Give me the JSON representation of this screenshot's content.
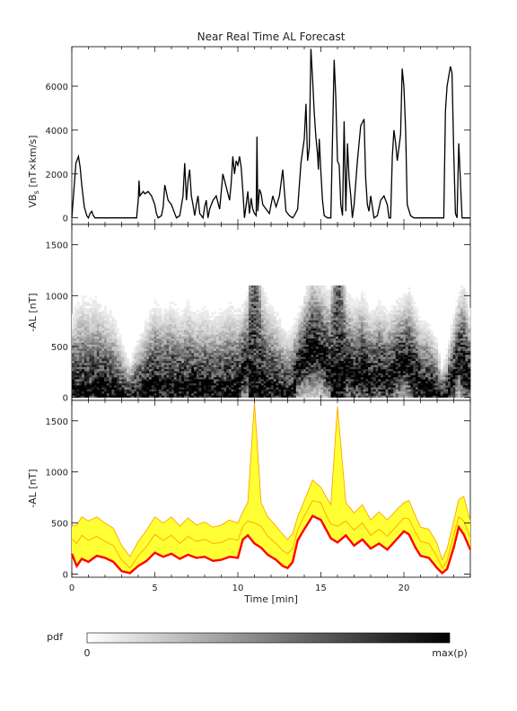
{
  "title": "Near Real Time AL Forecast",
  "colors": {
    "vbs_line": "#000000",
    "pdf_dark": "#000000",
    "median_line": "#ff0000",
    "band_fill": "#ffff33",
    "band_edge": "#ffa500"
  },
  "chart_data": [
    {
      "type": "line",
      "ylabel": "VB_s [nT×km/s]",
      "xlim": [
        0,
        24
      ],
      "ylim": [
        -300,
        7800
      ],
      "yticks": [
        0,
        2000,
        4000,
        6000
      ],
      "series": [
        {
          "x": [
            0,
            0.25,
            0.4,
            0.5,
            0.6,
            0.75,
            0.9,
            1.0,
            1.1,
            1.2,
            1.3,
            1.4,
            1.5,
            1.7,
            1.9,
            2.1,
            2.3,
            2.5,
            3.0,
            3.5,
            3.9,
            4.0,
            4.05,
            4.1,
            4.2,
            4.3,
            4.4,
            4.6,
            4.8,
            5.0,
            5.1,
            5.2,
            5.4,
            5.5,
            5.6,
            5.8,
            6.0,
            6.2,
            6.3,
            6.5,
            6.7,
            6.8,
            6.9,
            7.0,
            7.1,
            7.2,
            7.3,
            7.4,
            7.5,
            7.6,
            7.7,
            7.9,
            8.0,
            8.1,
            8.2,
            8.3,
            8.4,
            8.5,
            8.7,
            8.9,
            9.1,
            9.3,
            9.5,
            9.6,
            9.7,
            9.8,
            9.9,
            10.0,
            10.1,
            10.2,
            10.3,
            10.4,
            10.5,
            10.6,
            10.7,
            10.8,
            10.9,
            11.0,
            11.1,
            11.15,
            11.2,
            11.3,
            11.4,
            11.5,
            11.7,
            11.9,
            12.1,
            12.3,
            12.5,
            12.7,
            12.9,
            13.1,
            13.3,
            13.4,
            13.6,
            13.8,
            14.0,
            14.1,
            14.2,
            14.3,
            14.4,
            14.5,
            14.6,
            14.7,
            14.8,
            14.85,
            14.9,
            15.0,
            15.1,
            15.2,
            15.4,
            15.6,
            15.8,
            15.9,
            16.0,
            16.1,
            16.2,
            16.3,
            16.4,
            16.5,
            16.6,
            16.7,
            16.8,
            16.9,
            17.0,
            17.2,
            17.4,
            17.6,
            17.7,
            17.8,
            17.9,
            18.0,
            18.2,
            18.4,
            18.6,
            18.8,
            19.0,
            19.1,
            19.2,
            19.3,
            19.4,
            19.5,
            19.6,
            19.8,
            19.9,
            20.0,
            20.1,
            20.2,
            20.4,
            20.6,
            20.8,
            21.0,
            21.2,
            21.4,
            21.6,
            21.8,
            22.0,
            22.2,
            22.4,
            22.5,
            22.6,
            22.8,
            22.9,
            23.0,
            23.1,
            23.2,
            23.3,
            23.5,
            23.7,
            24
          ],
          "y": [
            0,
            2500,
            2800,
            2300,
            1500,
            500,
            100,
            0,
            200,
            300,
            100,
            0,
            0,
            0,
            0,
            0,
            0,
            0,
            0,
            0,
            0,
            800,
            1700,
            1000,
            1100,
            1200,
            1100,
            1200,
            1000,
            600,
            200,
            0,
            100,
            500,
            1500,
            800,
            600,
            200,
            0,
            100,
            1000,
            2500,
            800,
            1700,
            2200,
            1000,
            600,
            100,
            600,
            1000,
            200,
            0,
            500,
            800,
            0,
            400,
            600,
            800,
            1000,
            400,
            2000,
            1400,
            800,
            1600,
            2800,
            2000,
            2600,
            2400,
            2800,
            2300,
            1200,
            0,
            600,
            1200,
            200,
            900,
            400,
            200,
            100,
            3700,
            300,
            1300,
            1100,
            600,
            400,
            200,
            1000,
            500,
            1000,
            2200,
            300,
            100,
            0,
            100,
            400,
            2500,
            3600,
            5200,
            2600,
            3200,
            7700,
            6300,
            4800,
            3700,
            2900,
            2200,
            3600,
            2100,
            800,
            100,
            0,
            0,
            7200,
            5500,
            2600,
            2400,
            600,
            100,
            4400,
            300,
            3400,
            1800,
            1000,
            0,
            600,
            2600,
            4200,
            4500,
            1800,
            600,
            300,
            1000,
            0,
            100,
            800,
            1000,
            600,
            0,
            0,
            2800,
            4000,
            3400,
            2600,
            3800,
            6800,
            6000,
            4000,
            600,
            100,
            0,
            0,
            0,
            0,
            0,
            0,
            0,
            0,
            0,
            0,
            4900,
            6000,
            6900,
            6600,
            3000,
            200,
            0,
            3400,
            0,
            0,
            0
          ],
          "color": "#000000"
        }
      ]
    },
    {
      "type": "heatmap",
      "ylabel": "-AL [nT]",
      "xlim": [
        0,
        24
      ],
      "ylim": [
        -30,
        1700
      ],
      "yticks": [
        0,
        500,
        1000,
        1500
      ],
      "colormap": "white-to-black probability density"
    },
    {
      "type": "area",
      "ylabel": "-AL [nT]",
      "xlabel": "Time [min]",
      "xlim": [
        0,
        24
      ],
      "ylim": [
        -30,
        1700
      ],
      "xticks": [
        0,
        5,
        10,
        15,
        20
      ],
      "yticks": [
        0,
        500,
        1000,
        1500
      ],
      "x": [
        0,
        0.3,
        0.6,
        1.0,
        1.5,
        2.0,
        2.5,
        3.0,
        3.5,
        4.0,
        4.5,
        5.0,
        5.5,
        6.0,
        6.5,
        7.0,
        7.5,
        8.0,
        8.5,
        9.0,
        9.5,
        10.0,
        10.3,
        10.6,
        11.0,
        11.4,
        11.8,
        12.3,
        12.7,
        13.0,
        13.3,
        13.6,
        14.0,
        14.5,
        15.0,
        15.3,
        15.6,
        16.0,
        16.5,
        17.0,
        17.5,
        18.0,
        18.5,
        19.0,
        19.5,
        20.0,
        20.3,
        20.7,
        21.0,
        21.5,
        22.0,
        22.3,
        22.6,
        23.0,
        23.3,
        23.6,
        24
      ],
      "series": [
        {
          "name": "",
          "values": [
            200,
            80,
            150,
            120,
            180,
            160,
            120,
            30,
            10,
            80,
            130,
            210,
            170,
            200,
            150,
            190,
            160,
            170,
            130,
            140,
            170,
            160,
            340,
            380,
            300,
            260,
            190,
            140,
            80,
            60,
            120,
            330,
            440,
            570,
            530,
            440,
            350,
            310,
            380,
            280,
            340,
            250,
            300,
            240,
            330,
            420,
            390,
            260,
            180,
            160,
            60,
            10,
            50,
            260,
            460,
            390,
            240
          ],
          "color": "#ff0000"
        },
        {
          "name": "",
          "values": [
            340,
            300,
            380,
            330,
            370,
            320,
            280,
            140,
            60,
            180,
            270,
            390,
            330,
            380,
            300,
            370,
            320,
            340,
            300,
            310,
            350,
            330,
            470,
            520,
            500,
            470,
            370,
            300,
            230,
            200,
            250,
            430,
            570,
            720,
            700,
            580,
            490,
            470,
            520,
            430,
            500,
            380,
            440,
            370,
            460,
            550,
            540,
            410,
            320,
            300,
            170,
            60,
            130,
            380,
            560,
            520,
            360
          ],
          "color": "#ffa500"
        },
        {
          "name": "",
          "values": [
            470,
            480,
            560,
            520,
            560,
            500,
            450,
            280,
            170,
            320,
            430,
            560,
            500,
            560,
            470,
            550,
            480,
            510,
            460,
            480,
            530,
            500,
            610,
            700,
            1680,
            700,
            560,
            470,
            390,
            340,
            400,
            560,
            720,
            920,
            850,
            760,
            680,
            1640,
            700,
            600,
            680,
            530,
            610,
            530,
            620,
            700,
            720,
            570,
            460,
            440,
            300,
            140,
            250,
            520,
            730,
            760,
            520
          ],
          "color": "#ffa500"
        }
      ]
    }
  ],
  "colorbar": {
    "label": "pdf",
    "min_label": "0",
    "max_label": "max(p)"
  }
}
